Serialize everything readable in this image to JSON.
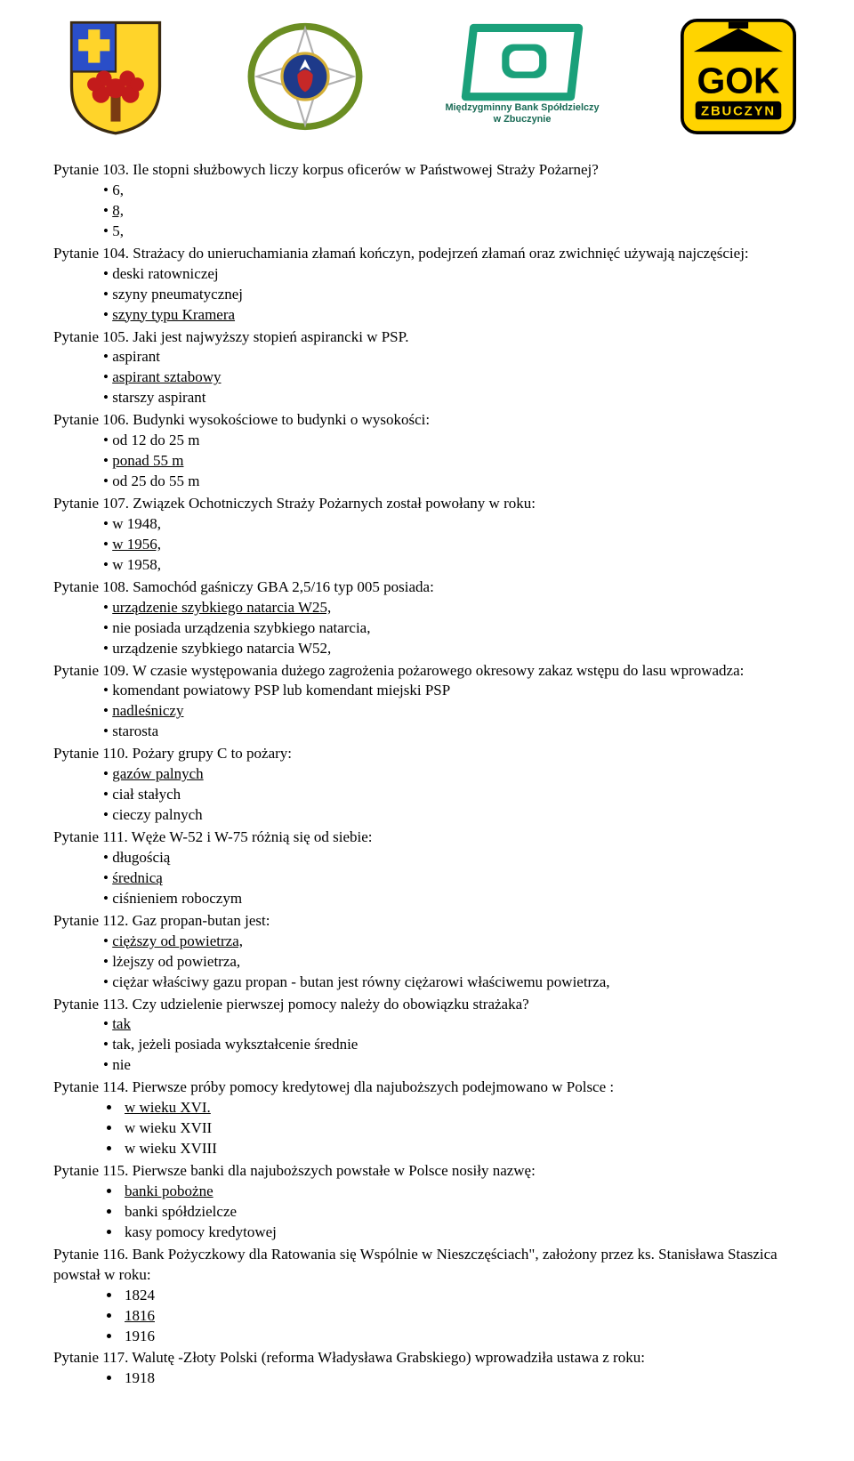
{
  "logos": {
    "shield_colors": {
      "bg": "#ffd42a",
      "blue": "#2a4ec8",
      "red": "#c31b1b",
      "outline": "#3a2a12"
    },
    "fire_colors": {
      "red": "#c62828",
      "white": "#ffffff",
      "laurel": "#6b8e23",
      "blue": "#1e3a8a"
    },
    "bank_colors": {
      "green": "#1aa07a",
      "text": "#1a6b56"
    },
    "gok_colors": {
      "bg": "#ffd400",
      "black": "#000000"
    },
    "bank_line1": "Międzygminny Bank Spółdzielczy",
    "bank_line2": "w Zbuczynie",
    "gok_line1": "GOK",
    "gok_line2": "ZBUCZYN"
  },
  "items": [
    {
      "type": "q",
      "text": "Pytanie 103. Ile stopni służbowych liczy korpus oficerów w Państwowej Straży Pożarnej?"
    },
    {
      "type": "opts",
      "style": "bullet",
      "opts": [
        {
          "t": "6,"
        },
        {
          "t": "8,",
          "u": true
        },
        {
          "t": "5,"
        }
      ]
    },
    {
      "type": "q",
      "text": "Pytanie 104. Strażacy do unieruchamiania złamań kończyn, podejrzeń złamań oraz zwichnięć używają najczęściej:"
    },
    {
      "type": "opts",
      "style": "bullet",
      "opts": [
        {
          "t": "deski ratowniczej"
        },
        {
          "t": "szyny pneumatycznej"
        },
        {
          "t": "szyny typu Kramera",
          "u": true
        }
      ]
    },
    {
      "type": "q",
      "text": "Pytanie 105. Jaki jest najwyższy stopień aspirancki w PSP."
    },
    {
      "type": "opts",
      "style": "bullet",
      "opts": [
        {
          "t": "aspirant"
        },
        {
          "t": "aspirant sztabowy",
          "u": true
        },
        {
          "t": "starszy aspirant"
        }
      ]
    },
    {
      "type": "q",
      "text": "Pytanie 106. Budynki wysokościowe to budynki o wysokości:"
    },
    {
      "type": "opts",
      "style": "bullet",
      "opts": [
        {
          "t": "od 12 do 25 m"
        },
        {
          "t": "ponad 55 m",
          "u": true
        },
        {
          "t": "od 25 do 55 m"
        }
      ]
    },
    {
      "type": "q",
      "text": "Pytanie 107. Związek Ochotniczych Straży Pożarnych został powołany w roku:"
    },
    {
      "type": "opts",
      "style": "bullet",
      "opts": [
        {
          "t": "w 1948,"
        },
        {
          "t": "w 1956,",
          "u": true
        },
        {
          "t": "w 1958,"
        }
      ]
    },
    {
      "type": "q",
      "text": "Pytanie 108. Samochód gaśniczy GBA 2,5/16 typ 005 posiada:"
    },
    {
      "type": "opts",
      "style": "bullet",
      "opts": [
        {
          "t": "urządzenie szybkiego natarcia W25,",
          "u": true
        },
        {
          "t": "nie posiada urządzenia szybkiego natarcia,"
        },
        {
          "t": "urządzenie szybkiego natarcia W52,"
        }
      ]
    },
    {
      "type": "q",
      "text": "Pytanie 109. W czasie występowania dużego zagrożenia pożarowego okresowy zakaz wstępu do lasu wprowadza:"
    },
    {
      "type": "opts",
      "style": "bullet",
      "opts": [
        {
          "t": "komendant powiatowy PSP lub komendant miejski PSP"
        },
        {
          "t": "nadleśniczy",
          "u": true
        },
        {
          "t": "starosta"
        }
      ]
    },
    {
      "type": "q",
      "text": "Pytanie 110. Pożary grupy C to pożary:"
    },
    {
      "type": "opts",
      "style": "bullet",
      "opts": [
        {
          "t": "gazów palnych",
          "u": true
        },
        {
          "t": "ciał stałych"
        },
        {
          "t": "cieczy palnych"
        }
      ]
    },
    {
      "type": "q",
      "text": "Pytanie 111. Węże W-52 i W-75 różnią się od siebie:"
    },
    {
      "type": "opts",
      "style": "bullet",
      "opts": [
        {
          "t": "długością"
        },
        {
          "t": "średnicą",
          "u": true
        },
        {
          "t": "ciśnieniem roboczym"
        }
      ]
    },
    {
      "type": "q",
      "text": "Pytanie 112. Gaz propan-butan jest:"
    },
    {
      "type": "opts",
      "style": "bullet",
      "opts": [
        {
          "t": "cięższy od powietrza,",
          "u": true
        },
        {
          "t": "lżejszy od powietrza,"
        },
        {
          "t": "ciężar właściwy gazu propan - butan jest równy ciężarowi właściwemu powietrza,"
        }
      ]
    },
    {
      "type": "q",
      "text": "Pytanie 113. Czy udzielenie pierwszej pomocy należy do obowiązku strażaka?"
    },
    {
      "type": "opts",
      "style": "bullet",
      "opts": [
        {
          "t": "tak",
          "u": true
        },
        {
          "t": "tak, jeżeli posiada wykształcenie średnie"
        },
        {
          "t": "nie"
        }
      ]
    },
    {
      "type": "q",
      "text": "Pytanie 114. Pierwsze próby pomocy kredytowej  dla najuboższych podejmowano w Polsce :"
    },
    {
      "type": "opts",
      "style": "dot",
      "opts": [
        {
          "t": "w wieku XVI.",
          "u": true
        },
        {
          "t": "w wieku XVII"
        },
        {
          "t": "w wieku XVIII"
        }
      ]
    },
    {
      "type": "q",
      "text": "Pytanie 115. Pierwsze banki dla najuboższych powstałe w Polsce nosiły nazwę:"
    },
    {
      "type": "opts",
      "style": "dot",
      "opts": [
        {
          "t": "banki pobożne",
          "u": true
        },
        {
          "t": "banki spółdzielcze"
        },
        {
          "t": "kasy pomocy kredytowej"
        }
      ]
    },
    {
      "type": "q",
      "text": "Pytanie  116.        Bank Pożyczkowy dla Ratowania się Wspólnie w Nieszczęściach\", założony  przez ks. Stanisława Staszica powstał w roku:"
    },
    {
      "type": "opts",
      "style": "dot",
      "opts": [
        {
          "t": "1824"
        },
        {
          "t": "1816",
          "u": true
        },
        {
          "t": "1916"
        }
      ]
    },
    {
      "type": "q",
      "text": "Pytanie 117. Walutę -Złoty Polski  (reforma   Władysława  Grabskiego) wprowadziła  ustawa z roku:"
    },
    {
      "type": "opts",
      "style": "dot",
      "opts": [
        {
          "t": "1918"
        }
      ]
    }
  ]
}
